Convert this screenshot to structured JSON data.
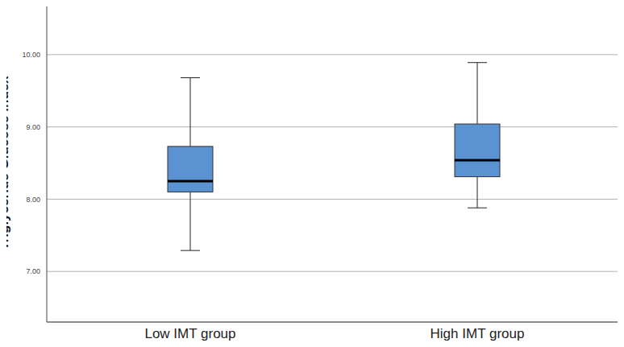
{
  "chart_data": {
    "type": "box",
    "y_label": "Triglyceride Glucose Index",
    "categories": [
      "Low IMT group",
      "High IMT group"
    ],
    "min": [
      7.29,
      7.88
    ],
    "q1": [
      8.1,
      8.31
    ],
    "median": [
      8.25,
      8.54
    ],
    "q3": [
      8.73,
      9.04
    ],
    "max": [
      9.68,
      9.89
    ],
    "color": "#5b92d1",
    "ylim": [
      6.3,
      10.7
    ],
    "yticks": [
      {
        "value": 7,
        "label": "7.00"
      },
      {
        "value": 8,
        "label": "8.00"
      },
      {
        "value": 9,
        "label": "9.00"
      },
      {
        "value": 10,
        "label": "10.00"
      }
    ],
    "grid": true
  }
}
